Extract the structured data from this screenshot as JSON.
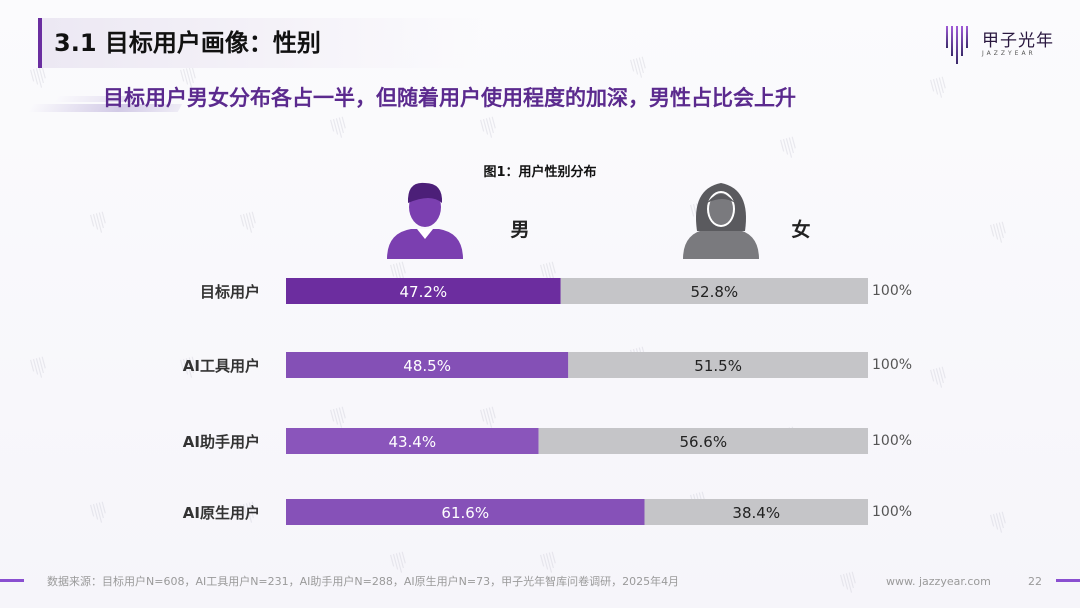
{
  "header": {
    "title": "3.1 目标用户画像：性别",
    "subtitle": "目标用户男女分布各占一半，但随着用户使用程度的加深，男性占比会上升"
  },
  "logo": {
    "name_cn": "甲子光年",
    "name_en": "JAZZYEAR"
  },
  "colors": {
    "male_bar": "#7b3fb0",
    "female_bar": "#c5c5c8",
    "title_accent": "#6a2ea0",
    "subtitle": "#5b2a8e"
  },
  "chart_data": {
    "type": "bar",
    "stacked": true,
    "orientation": "horizontal",
    "title": "图1：用户性别分布",
    "categories": [
      "目标用户",
      "AI工具用户",
      "AI助手用户",
      "AI原生用户"
    ],
    "series": [
      {
        "name": "男",
        "values": [
          47.2,
          48.5,
          43.4,
          61.6
        ],
        "labels": [
          "47.2%",
          "48.5%",
          "43.4%",
          "61.6%"
        ],
        "icon": "male-user-icon"
      },
      {
        "name": "女",
        "values": [
          52.8,
          51.5,
          56.6,
          38.4
        ],
        "labels": [
          "52.8%",
          "51.5%",
          "56.6%",
          "38.4%"
        ],
        "icon": "female-user-icon"
      }
    ],
    "totals": [
      "100%",
      "100%",
      "100%",
      "100%"
    ],
    "xlim": [
      0,
      100
    ],
    "legend": "top"
  },
  "footer": {
    "source": "数据来源：目标用户N=608，AI工具用户N=231，AI助手用户N=288，AI原生用户N=73，甲子光年智库问卷调研，2025年4月",
    "website": "www. jazzyear.com",
    "page_number": "22"
  }
}
